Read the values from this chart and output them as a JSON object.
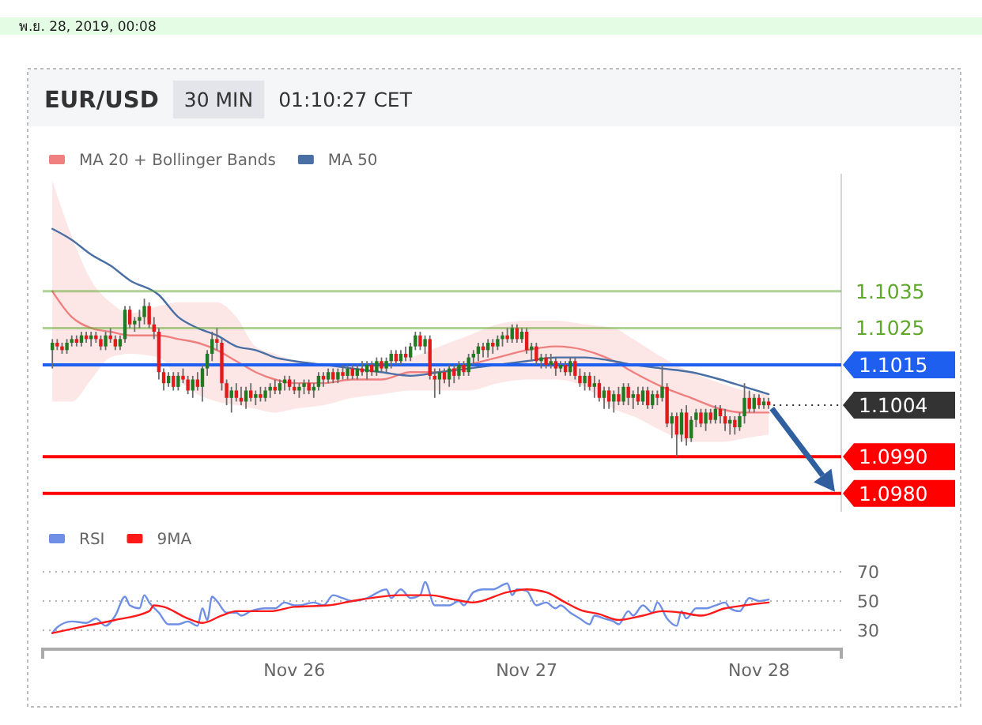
{
  "chart_data": [
    {
      "type": "candlestick",
      "title": "EUR/USD",
      "subtitle": "30 MIN",
      "annotations": [
        "พ.ย. 28, 2019, 00:08",
        "01:10:27 CET"
      ],
      "x": [
        "2019-11-24T23:00",
        "2019-11-24T23:30",
        "2019-11-25T00:00",
        "2019-11-25T00:30",
        "2019-11-25T01:00",
        "2019-11-25T01:30",
        "2019-11-25T02:00",
        "2019-11-25T02:30",
        "2019-11-25T03:00",
        "2019-11-25T03:30",
        "2019-11-25T04:00",
        "2019-11-25T04:30",
        "2019-11-25T05:00",
        "2019-11-25T05:30",
        "2019-11-25T06:00",
        "2019-11-25T06:30",
        "2019-11-25T07:00",
        "2019-11-25T07:30",
        "2019-11-25T08:00",
        "2019-11-25T08:30",
        "2019-11-25T09:00",
        "2019-11-25T09:30",
        "2019-11-25T10:00",
        "2019-11-25T10:30",
        "2019-11-25T11:00",
        "2019-11-25T11:30",
        "2019-11-25T12:00",
        "2019-11-25T12:30",
        "2019-11-25T13:00",
        "2019-11-25T13:30",
        "2019-11-25T14:00",
        "2019-11-25T14:30",
        "2019-11-25T15:00",
        "2019-11-25T15:30",
        "2019-11-25T16:00",
        "2019-11-25T16:30",
        "2019-11-25T17:00",
        "2019-11-25T17:30",
        "2019-11-25T18:00",
        "2019-11-25T18:30",
        "2019-11-25T19:00",
        "2019-11-25T19:30",
        "2019-11-25T20:00",
        "2019-11-25T20:30",
        "2019-11-25T21:00",
        "2019-11-25T21:30",
        "2019-11-25T22:00",
        "2019-11-25T22:30",
        "2019-11-25T23:00",
        "2019-11-25T23:30",
        "2019-11-26T00:00",
        "2019-11-26T00:30",
        "2019-11-26T01:00",
        "2019-11-26T01:30",
        "2019-11-26T02:00",
        "2019-11-26T02:30",
        "2019-11-26T03:00",
        "2019-11-26T03:30",
        "2019-11-26T04:00",
        "2019-11-26T04:30",
        "2019-11-26T05:00",
        "2019-11-26T05:30",
        "2019-11-26T06:00",
        "2019-11-26T06:30",
        "2019-11-26T07:00",
        "2019-11-26T07:30",
        "2019-11-26T08:00",
        "2019-11-26T08:30",
        "2019-11-26T09:00",
        "2019-11-26T09:30",
        "2019-11-26T10:00",
        "2019-11-26T10:30",
        "2019-11-26T11:00",
        "2019-11-26T11:30",
        "2019-11-26T12:00",
        "2019-11-26T12:30",
        "2019-11-26T13:00",
        "2019-11-26T13:30",
        "2019-11-26T14:00",
        "2019-11-26T14:30",
        "2019-11-26T15:00",
        "2019-11-26T15:30",
        "2019-11-26T16:00",
        "2019-11-26T16:30",
        "2019-11-26T17:00",
        "2019-11-26T17:30",
        "2019-11-26T18:00",
        "2019-11-26T18:30",
        "2019-11-26T19:00",
        "2019-11-26T19:30",
        "2019-11-26T20:00",
        "2019-11-26T20:30",
        "2019-11-26T21:00",
        "2019-11-26T21:30",
        "2019-11-26T22:00",
        "2019-11-26T22:30",
        "2019-11-26T23:00",
        "2019-11-26T23:30",
        "2019-11-27T00:00",
        "2019-11-27T00:30",
        "2019-11-27T01:00",
        "2019-11-27T01:30",
        "2019-11-27T02:00",
        "2019-11-27T02:30",
        "2019-11-27T03:00",
        "2019-11-27T03:30",
        "2019-11-27T04:00",
        "2019-11-27T04:30",
        "2019-11-27T05:00",
        "2019-11-27T05:30",
        "2019-11-27T06:00",
        "2019-11-27T06:30",
        "2019-11-27T07:00",
        "2019-11-27T07:30",
        "2019-11-27T08:00",
        "2019-11-27T08:30",
        "2019-11-27T09:00",
        "2019-11-27T09:30",
        "2019-11-27T10:00",
        "2019-11-27T10:30",
        "2019-11-27T11:00",
        "2019-11-27T11:30",
        "2019-11-27T12:00",
        "2019-11-27T12:30",
        "2019-11-27T13:00",
        "2019-11-27T13:30",
        "2019-11-27T14:00",
        "2019-11-27T14:30",
        "2019-11-27T15:00",
        "2019-11-27T15:30",
        "2019-11-27T16:00",
        "2019-11-27T16:30",
        "2019-11-27T17:00",
        "2019-11-27T17:30",
        "2019-11-27T18:00",
        "2019-11-27T18:30",
        "2019-11-27T19:00",
        "2019-11-27T19:30",
        "2019-11-27T20:00",
        "2019-11-27T20:30",
        "2019-11-27T21:00",
        "2019-11-27T21:30",
        "2019-11-27T22:00",
        "2019-11-27T22:30",
        "2019-11-27T23:00",
        "2019-11-27T23:30",
        "2019-11-28T00:00",
        "2019-11-28T00:30",
        "2019-11-28T01:00"
      ],
      "ohlc": [
        [
          1.1019,
          1.1022,
          1.1014,
          1.1021
        ],
        [
          1.1021,
          1.1022,
          1.1019,
          1.102
        ],
        [
          1.102,
          1.1021,
          1.1018,
          1.1019
        ],
        [
          1.1019,
          1.1022,
          1.1018,
          1.1021
        ],
        [
          1.1021,
          1.1023,
          1.102,
          1.1022
        ],
        [
          1.1022,
          1.1023,
          1.102,
          1.1021
        ],
        [
          1.1021,
          1.1024,
          1.102,
          1.1023
        ],
        [
          1.1023,
          1.1024,
          1.1021,
          1.1022
        ],
        [
          1.1022,
          1.1024,
          1.102,
          1.1023
        ],
        [
          1.1023,
          1.1024,
          1.1021,
          1.1022
        ],
        [
          1.1022,
          1.1023,
          1.1019,
          1.102
        ],
        [
          1.102,
          1.1024,
          1.1019,
          1.1023
        ],
        [
          1.1023,
          1.1025,
          1.1021,
          1.1022
        ],
        [
          1.1022,
          1.1023,
          1.1019,
          1.102
        ],
        [
          1.102,
          1.1023,
          1.1019,
          1.1022
        ],
        [
          1.1022,
          1.1031,
          1.1021,
          1.103
        ],
        [
          1.103,
          1.1031,
          1.1025,
          1.1026
        ],
        [
          1.1026,
          1.1028,
          1.1024,
          1.1027
        ],
        [
          1.1027,
          1.103,
          1.1025,
          1.1028
        ],
        [
          1.1028,
          1.1033,
          1.1026,
          1.1031
        ],
        [
          1.1031,
          1.1032,
          1.1025,
          1.1026
        ],
        [
          1.1026,
          1.1028,
          1.1022,
          1.1024
        ],
        [
          1.1024,
          1.1025,
          1.1011,
          1.1013
        ],
        [
          1.1013,
          1.1014,
          1.1008,
          1.101
        ],
        [
          1.101,
          1.1013,
          1.1009,
          1.1012
        ],
        [
          1.1012,
          1.1013,
          1.1008,
          1.1009
        ],
        [
          1.1009,
          1.1013,
          1.1008,
          1.1012
        ],
        [
          1.1012,
          1.1014,
          1.101,
          1.1011
        ],
        [
          1.1011,
          1.1012,
          1.1007,
          1.1008
        ],
        [
          1.1008,
          1.1012,
          1.1006,
          1.1011
        ],
        [
          1.1011,
          1.1013,
          1.1008,
          1.1009
        ],
        [
          1.1009,
          1.1015,
          1.1005,
          1.1014
        ],
        [
          1.1014,
          1.1019,
          1.1012,
          1.1018
        ],
        [
          1.1018,
          1.1024,
          1.1016,
          1.1022
        ],
        [
          1.1022,
          1.1025,
          1.1019,
          1.1021
        ],
        [
          1.1021,
          1.1022,
          1.1008,
          1.101
        ],
        [
          1.101,
          1.1011,
          1.1004,
          1.1006
        ],
        [
          1.1006,
          1.1009,
          1.1002,
          1.1008
        ],
        [
          1.1008,
          1.101,
          1.1005,
          1.1006
        ],
        [
          1.1006,
          1.1009,
          1.1004,
          1.1005
        ],
        [
          1.1005,
          1.1009,
          1.1003,
          1.1008
        ],
        [
          1.1008,
          1.101,
          1.1005,
          1.1006
        ],
        [
          1.1006,
          1.1008,
          1.1004,
          1.1007
        ],
        [
          1.1007,
          1.1009,
          1.1005,
          1.1006
        ],
        [
          1.1006,
          1.1009,
          1.1005,
          1.1008
        ],
        [
          1.1008,
          1.101,
          1.1006,
          1.1009
        ],
        [
          1.1009,
          1.1011,
          1.1007,
          1.1008
        ],
        [
          1.1008,
          1.1011,
          1.1007,
          1.101
        ],
        [
          1.101,
          1.1012,
          1.1008,
          1.1011
        ],
        [
          1.1011,
          1.1012,
          1.1008,
          1.1009
        ],
        [
          1.1009,
          1.1011,
          1.1007,
          1.1008
        ],
        [
          1.1008,
          1.101,
          1.1006,
          1.1009
        ],
        [
          1.1009,
          1.1011,
          1.1007,
          1.101
        ],
        [
          1.101,
          1.1011,
          1.1007,
          1.1008
        ],
        [
          1.1008,
          1.101,
          1.1006,
          1.1009
        ],
        [
          1.1009,
          1.1013,
          1.1008,
          1.1012
        ],
        [
          1.1012,
          1.1013,
          1.1009,
          1.1011
        ],
        [
          1.1011,
          1.1014,
          1.101,
          1.1013
        ],
        [
          1.1013,
          1.1014,
          1.101,
          1.1011
        ],
        [
          1.1011,
          1.1014,
          1.101,
          1.1013
        ],
        [
          1.1013,
          1.1015,
          1.1011,
          1.1012
        ],
        [
          1.1012,
          1.1015,
          1.1011,
          1.1014
        ],
        [
          1.1014,
          1.1015,
          1.1011,
          1.1012
        ],
        [
          1.1012,
          1.1015,
          1.1011,
          1.1014
        ],
        [
          1.1014,
          1.1016,
          1.1012,
          1.1013
        ],
        [
          1.1013,
          1.1016,
          1.1011,
          1.1015
        ],
        [
          1.1015,
          1.1016,
          1.1012,
          1.1013
        ],
        [
          1.1013,
          1.1017,
          1.1012,
          1.1016
        ],
        [
          1.1016,
          1.1017,
          1.1013,
          1.1014
        ],
        [
          1.1014,
          1.1017,
          1.1013,
          1.1016
        ],
        [
          1.1016,
          1.1019,
          1.1014,
          1.1018
        ],
        [
          1.1018,
          1.1019,
          1.1015,
          1.1016
        ],
        [
          1.1016,
          1.1019,
          1.1015,
          1.1018
        ],
        [
          1.1018,
          1.102,
          1.1016,
          1.1017
        ],
        [
          1.1017,
          1.1021,
          1.1016,
          1.102
        ],
        [
          1.102,
          1.1024,
          1.1019,
          1.1023
        ],
        [
          1.1023,
          1.1024,
          1.1019,
          1.102
        ],
        [
          1.102,
          1.1023,
          1.1018,
          1.1022
        ],
        [
          1.1022,
          1.1023,
          1.1011,
          1.1012
        ],
        [
          1.1012,
          1.1014,
          1.1006,
          1.1011
        ],
        [
          1.1011,
          1.1014,
          1.1007,
          1.1013
        ],
        [
          1.1013,
          1.1014,
          1.101,
          1.1011
        ],
        [
          1.1011,
          1.1015,
          1.1009,
          1.1014
        ],
        [
          1.1014,
          1.1015,
          1.101,
          1.1012
        ],
        [
          1.1012,
          1.1016,
          1.1011,
          1.1015
        ],
        [
          1.1015,
          1.1016,
          1.1012,
          1.1013
        ],
        [
          1.1013,
          1.1018,
          1.1012,
          1.1017
        ],
        [
          1.1017,
          1.1019,
          1.1015,
          1.1018
        ],
        [
          1.1018,
          1.1021,
          1.1016,
          1.102
        ],
        [
          1.102,
          1.1021,
          1.1017,
          1.1019
        ],
        [
          1.1019,
          1.1022,
          1.1017,
          1.1021
        ],
        [
          1.1021,
          1.1022,
          1.1018,
          1.102
        ],
        [
          1.102,
          1.1023,
          1.1019,
          1.1022
        ],
        [
          1.1022,
          1.1024,
          1.102,
          1.1023
        ],
        [
          1.1023,
          1.1025,
          1.1021,
          1.1022
        ],
        [
          1.1022,
          1.1026,
          1.1021,
          1.1025
        ],
        [
          1.1025,
          1.1026,
          1.1021,
          1.1022
        ],
        [
          1.1022,
          1.1025,
          1.1021,
          1.1024
        ],
        [
          1.1024,
          1.1025,
          1.1018,
          1.1019
        ],
        [
          1.1019,
          1.1021,
          1.1016,
          1.102
        ],
        [
          1.102,
          1.1021,
          1.1015,
          1.1016
        ],
        [
          1.1016,
          1.1018,
          1.1014,
          1.1017
        ],
        [
          1.1017,
          1.1018,
          1.1014,
          1.1015
        ],
        [
          1.1015,
          1.1018,
          1.1014,
          1.1016
        ],
        [
          1.1016,
          1.1017,
          1.1012,
          1.1014
        ],
        [
          1.1014,
          1.1016,
          1.1013,
          1.1015
        ],
        [
          1.1015,
          1.1016,
          1.1012,
          1.1013
        ],
        [
          1.1013,
          1.1017,
          1.1012,
          1.1016
        ],
        [
          1.1016,
          1.1017,
          1.1011,
          1.1012
        ],
        [
          1.1012,
          1.1014,
          1.1009,
          1.101
        ],
        [
          1.101,
          1.1013,
          1.1008,
          1.1012
        ],
        [
          1.1012,
          1.1013,
          1.1008,
          1.1009
        ],
        [
          1.1009,
          1.1012,
          1.1006,
          1.101
        ],
        [
          1.101,
          1.1011,
          1.1005,
          1.1006
        ],
        [
          1.1006,
          1.1009,
          1.1003,
          1.1008
        ],
        [
          1.1008,
          1.1009,
          1.1003,
          1.1005
        ],
        [
          1.1005,
          1.1008,
          1.1002,
          1.1007
        ],
        [
          1.1007,
          1.1009,
          1.1004,
          1.1005
        ],
        [
          1.1005,
          1.101,
          1.1004,
          1.1009
        ],
        [
          1.1009,
          1.101,
          1.1004,
          1.1006
        ],
        [
          1.1006,
          1.1008,
          1.1003,
          1.1007
        ],
        [
          1.1007,
          1.1009,
          1.1004,
          1.1005
        ],
        [
          1.1005,
          1.1009,
          1.1004,
          1.1008
        ],
        [
          1.1008,
          1.1009,
          1.1003,
          1.1004
        ],
        [
          1.1004,
          1.1008,
          1.1003,
          1.1007
        ],
        [
          1.1007,
          1.1008,
          1.1004,
          1.1006
        ],
        [
          1.1006,
          1.1015,
          1.1005,
          1.1009
        ],
        [
          1.1009,
          1.101,
          1.0998,
          1.0999
        ],
        [
          1.0999,
          1.1002,
          1.0995,
          1.1001
        ],
        [
          1.1001,
          1.1002,
          1.099,
          1.0996
        ],
        [
          1.0996,
          1.1003,
          1.0994,
          1.1002
        ],
        [
          1.1002,
          1.1004,
          1.0993,
          1.0995
        ],
        [
          1.0995,
          1.1001,
          1.0994,
          1.1
        ],
        [
          1.1,
          1.1003,
          1.0998,
          1.1002
        ],
        [
          1.1002,
          1.1003,
          1.0998,
          1.0999
        ],
        [
          1.0999,
          1.1003,
          1.0997,
          1.1002
        ],
        [
          1.1002,
          1.1003,
          1.0999,
          1.1
        ],
        [
          1.1,
          1.1004,
          1.0999,
          1.1003
        ],
        [
          1.1003,
          1.1004,
          1.0999,
          1.1001
        ],
        [
          1.1001,
          1.1003,
          1.0997,
          1.0999
        ],
        [
          1.0999,
          1.1001,
          1.0996,
          1.1
        ],
        [
          1.1,
          1.1001,
          1.0996,
          1.0998
        ],
        [
          1.0998,
          1.1002,
          1.0997,
          1.1001
        ],
        [
          1.1001,
          1.101,
          1.0999,
          1.1006
        ],
        [
          1.1006,
          1.1008,
          1.1002,
          1.1003
        ],
        [
          1.1003,
          1.1007,
          1.1002,
          1.1006
        ],
        [
          1.1006,
          1.1007,
          1.1003,
          1.1004
        ],
        [
          1.1004,
          1.1006,
          1.1003,
          1.1005
        ],
        [
          1.1005,
          1.1006,
          1.1003,
          1.1004
        ]
      ],
      "colors": [
        "#217a21",
        "#e41a1a",
        "#e41a1a",
        "#217a21",
        "#217a21",
        "#e41a1a",
        "#217a21",
        "#e41a1a",
        "#217a21",
        "#e41a1a",
        "#e41a1a",
        "#217a21",
        "#e41a1a",
        "#e41a1a",
        "#217a21",
        "#217a21",
        "#e41a1a",
        "#217a21",
        "#217a21",
        "#217a21",
        "#e41a1a",
        "#e41a1a",
        "#e41a1a",
        "#e41a1a",
        "#217a21",
        "#e41a1a",
        "#217a21",
        "#e41a1a",
        "#e41a1a",
        "#217a21",
        "#e41a1a",
        "#217a21",
        "#217a21",
        "#217a21",
        "#e41a1a",
        "#e41a1a",
        "#e41a1a",
        "#217a21",
        "#e41a1a",
        "#e41a1a",
        "#217a21",
        "#e41a1a",
        "#217a21",
        "#e41a1a",
        "#217a21",
        "#217a21",
        "#e41a1a",
        "#217a21",
        "#217a21",
        "#e41a1a",
        "#e41a1a",
        "#217a21",
        "#217a21",
        "#e41a1a",
        "#217a21",
        "#217a21",
        "#e41a1a",
        "#217a21",
        "#e41a1a",
        "#217a21",
        "#e41a1a",
        "#217a21",
        "#e41a1a",
        "#217a21",
        "#e41a1a",
        "#217a21",
        "#e41a1a",
        "#217a21",
        "#e41a1a",
        "#217a21",
        "#217a21",
        "#e41a1a",
        "#217a21",
        "#e41a1a",
        "#217a21",
        "#217a21",
        "#e41a1a",
        "#217a21",
        "#e41a1a",
        "#e41a1a",
        "#217a21",
        "#e41a1a",
        "#217a21",
        "#e41a1a",
        "#217a21",
        "#e41a1a",
        "#217a21",
        "#217a21",
        "#217a21",
        "#e41a1a",
        "#217a21",
        "#e41a1a",
        "#217a21",
        "#217a21",
        "#e41a1a",
        "#217a21",
        "#e41a1a",
        "#217a21",
        "#e41a1a",
        "#217a21",
        "#e41a1a",
        "#217a21",
        "#e41a1a",
        "#217a21",
        "#e41a1a",
        "#217a21",
        "#e41a1a",
        "#217a21",
        "#e41a1a",
        "#e41a1a",
        "#217a21",
        "#e41a1a",
        "#217a21",
        "#e41a1a",
        "#217a21",
        "#e41a1a",
        "#217a21",
        "#e41a1a",
        "#217a21",
        "#e41a1a",
        "#217a21",
        "#e41a1a",
        "#217a21",
        "#e41a1a",
        "#217a21",
        "#e41a1a",
        "#217a21",
        "#e41a1a",
        "#217a21",
        "#e41a1a",
        "#217a21",
        "#e41a1a",
        "#217a21",
        "#217a21",
        "#e41a1a",
        "#217a21",
        "#e41a1a",
        "#217a21",
        "#e41a1a",
        "#e41a1a",
        "#217a21",
        "#e41a1a",
        "#217a21",
        "#217a21",
        "#e41a1a",
        "#217a21",
        "#e41a1a",
        "#217a21",
        "#e41a1a"
      ],
      "series": [
        {
          "name": "MA 20 + Bollinger Bands",
          "type": "line",
          "color": "#f08080",
          "x": [
            "2019-11-24T23:00",
            "2019-11-25T01:00",
            "2019-11-25T03:00",
            "2019-11-25T05:00",
            "2019-11-25T07:00",
            "2019-11-25T10:00",
            "2019-11-25T12:00",
            "2019-11-25T14:00",
            "2019-11-25T16:00",
            "2019-11-25T18:00",
            "2019-11-25T20:00",
            "2019-11-25T22:00",
            "2019-11-26T00:00",
            "2019-11-26T03:00",
            "2019-11-26T06:00",
            "2019-11-26T09:00",
            "2019-11-26T12:00",
            "2019-11-26T15:00",
            "2019-11-26T18:00",
            "2019-11-26T21:00",
            "2019-11-27T00:00",
            "2019-11-27T03:00",
            "2019-11-27T06:00",
            "2019-11-27T09:00",
            "2019-11-27T11:00",
            "2019-11-27T14:00",
            "2019-11-27T17:00",
            "2019-11-27T20:00",
            "2019-11-27T22:30",
            "2019-11-28T01:00"
          ],
          "values": [
            1.1035,
            1.1028,
            1.1025,
            1.1024,
            1.1023,
            1.1023,
            1.1022,
            1.1021,
            1.1019,
            1.1016,
            1.1013,
            1.1011,
            1.101,
            1.101,
            1.1011,
            1.1011,
            1.1013,
            1.1013,
            1.1015,
            1.1017,
            1.1019,
            1.102,
            1.1019,
            1.1016,
            1.1013,
            1.1009,
            1.1006,
            1.1003,
            1.1002,
            1.1002
          ],
          "upper": [
            1.1065,
            1.105,
            1.1038,
            1.1032,
            1.1029,
            1.1031,
            1.1032,
            1.1032,
            1.1032,
            1.1028,
            1.102,
            1.1018,
            1.1016,
            1.1015,
            1.1015,
            1.1016,
            1.1017,
            1.102,
            1.1023,
            1.1026,
            1.1027,
            1.1027,
            1.1026,
            1.1025,
            1.1022,
            1.1017,
            1.1013,
            1.101,
            1.1008,
            1.1007
          ],
          "lower": [
            1.1005,
            1.1005,
            1.1011,
            1.1017,
            1.1018,
            1.1017,
            1.1011,
            1.1007,
            1.1005,
            1.1004,
            1.1003,
            1.1002,
            1.1003,
            1.1004,
            1.1006,
            1.1007,
            1.1008,
            1.1008,
            1.1008,
            1.101,
            1.1011,
            1.1011,
            1.1009,
            1.1003,
            1.1001,
            1.0997,
            1.0994,
            1.0994,
            1.0995,
            1.0996
          ]
        },
        {
          "name": "MA 50",
          "type": "line",
          "color": "#4a6fa5",
          "x": [
            "2019-11-24T23:00",
            "2019-11-25T01:00",
            "2019-11-25T03:00",
            "2019-11-25T05:00",
            "2019-11-25T07:00",
            "2019-11-25T10:00",
            "2019-11-25T12:00",
            "2019-11-25T14:00",
            "2019-11-25T16:00",
            "2019-11-25T18:00",
            "2019-11-25T20:00",
            "2019-11-25T22:00",
            "2019-11-26T00:00",
            "2019-11-26T03:00",
            "2019-11-26T06:00",
            "2019-11-26T09:00",
            "2019-11-26T12:00",
            "2019-11-26T15:00",
            "2019-11-26T18:00",
            "2019-11-26T21:00",
            "2019-11-27T00:00",
            "2019-11-27T03:00",
            "2019-11-27T06:00",
            "2019-11-27T09:00",
            "2019-11-27T11:00",
            "2019-11-27T14:00",
            "2019-11-27T17:00",
            "2019-11-27T20:00",
            "2019-11-27T22:30",
            "2019-11-28T01:00"
          ],
          "values": [
            1.1052,
            1.1049,
            1.1045,
            1.1042,
            1.1038,
            1.1034,
            1.1028,
            1.1025,
            1.1023,
            1.102,
            1.1019,
            1.1017,
            1.1016,
            1.1015,
            1.1014,
            1.1013,
            1.1012,
            1.1013,
            1.1014,
            1.1015,
            1.1016,
            1.1017,
            1.1017,
            1.1016,
            1.1015,
            1.1014,
            1.1013,
            1.1011,
            1.1009,
            1.1007
          ]
        }
      ],
      "xlim": [
        "2019-11-24T22:00",
        "2019-11-28T08:30"
      ],
      "ylim": [
        1.0975,
        1.1067
      ],
      "yticks": [
        {
          "value": 1.098,
          "label": "1.0980"
        },
        {
          "value": 1.099,
          "label": "1.0990"
        },
        1.1004,
        1.1015,
        1.1025,
        1.1035
      ],
      "ref_lines": [
        {
          "axis": "y",
          "value": 1.1035,
          "color": "#5ea82a"
        },
        {
          "axis": "y",
          "value": 1.1025,
          "color": "#5ea82a"
        },
        {
          "axis": "y",
          "value": 1.1015,
          "color": "#1e5ff0"
        },
        {
          "axis": "y",
          "value": 1.1004,
          "color": "#333333",
          "line_style": "dotted"
        },
        {
          "axis": "y",
          "value": 1.099,
          "color": "#ff0000"
        },
        {
          "axis": "y",
          "value": 1.098,
          "color": "#ff0000"
        }
      ],
      "legend": "top left",
      "tick_labels": "y"
    },
    {
      "type": "line",
      "series": [
        {
          "name": "RSI",
          "color": "#6f8fe6",
          "x": [
            "2019-11-24T23:00",
            "2019-11-24T23:30",
            "2019-11-25T01:00",
            "2019-11-25T02:30",
            "2019-11-25T03:30",
            "2019-11-25T04:30",
            "2019-11-25T05:30",
            "2019-11-25T06:30",
            "2019-11-25T07:00",
            "2019-11-25T08:00",
            "2019-11-25T08:30",
            "2019-11-25T09:00",
            "2019-11-25T10:00",
            "2019-11-25T11:00",
            "2019-11-25T12:00",
            "2019-11-25T13:00",
            "2019-11-25T14:00",
            "2019-11-25T14:30",
            "2019-11-25T15:00",
            "2019-11-25T15:30",
            "2019-11-25T16:00",
            "2019-11-25T17:00",
            "2019-11-25T18:00",
            "2019-11-25T18:30",
            "2019-11-25T19:30",
            "2019-11-25T21:00",
            "2019-11-25T22:00",
            "2019-11-25T23:00",
            "2019-11-26T00:00",
            "2019-11-26T00:30",
            "2019-11-26T02:00",
            "2019-11-26T03:00",
            "2019-11-26T04:00",
            "2019-11-26T05:00",
            "2019-11-26T06:00",
            "2019-11-26T07:30",
            "2019-11-26T09:30",
            "2019-11-26T10:00",
            "2019-11-26T11:00",
            "2019-11-26T12:00",
            "2019-11-26T13:00",
            "2019-11-26T13:30",
            "2019-11-26T14:30",
            "2019-11-26T16:00",
            "2019-11-26T17:00",
            "2019-11-26T17:30",
            "2019-11-26T18:30",
            "2019-11-26T19:30",
            "2019-11-26T20:30",
            "2019-11-26T22:00",
            "2019-11-26T22:30",
            "2019-11-26T23:00",
            "2019-11-27T00:00",
            "2019-11-27T01:00",
            "2019-11-27T02:00",
            "2019-11-27T03:00",
            "2019-11-27T03:30",
            "2019-11-27T04:30",
            "2019-11-27T05:30",
            "2019-11-27T06:30",
            "2019-11-27T07:00",
            "2019-11-27T08:00",
            "2019-11-27T09:00",
            "2019-11-27T09:30",
            "2019-11-27T10:30",
            "2019-11-27T11:00",
            "2019-11-27T12:00",
            "2019-11-27T13:00",
            "2019-11-27T13:30",
            "2019-11-27T14:30",
            "2019-11-27T15:30",
            "2019-11-27T16:00",
            "2019-11-27T16:30",
            "2019-11-27T17:30",
            "2019-11-27T18:30",
            "2019-11-27T19:30",
            "2019-11-27T20:30",
            "2019-11-27T21:00",
            "2019-11-27T22:00",
            "2019-11-27T23:00",
            "2019-11-28T00:00",
            "2019-11-28T01:00"
          ],
          "values": [
            28,
            32,
            36,
            35,
            38,
            33,
            40,
            53,
            47,
            45,
            54,
            49,
            42,
            34,
            34,
            36,
            33,
            45,
            37,
            53,
            50,
            42,
            42,
            40,
            43,
            45,
            45,
            49,
            47,
            47,
            49,
            47,
            54,
            52,
            50,
            52,
            58,
            52,
            58,
            52,
            54,
            63,
            47,
            47,
            50,
            47,
            56,
            58,
            58,
            62,
            54,
            58,
            57,
            47,
            49,
            45,
            47,
            42,
            38,
            34,
            40,
            38,
            36,
            34,
            43,
            40,
            47,
            42,
            49,
            38,
            33,
            43,
            38,
            45,
            45,
            47,
            49,
            45,
            43,
            52,
            50,
            51
          ]
        },
        {
          "name": "9MA",
          "color": "#ff1a1a",
          "x": [
            "2019-11-24T23:00",
            "2019-11-25T02:30",
            "2019-11-25T05:30",
            "2019-11-25T09:00",
            "2019-11-25T09:30",
            "2019-11-25T10:30",
            "2019-11-25T13:00",
            "2019-11-25T14:30",
            "2019-11-25T16:30",
            "2019-11-25T18:00",
            "2019-11-25T21:30",
            "2019-11-26T00:00",
            "2019-11-26T03:30",
            "2019-11-26T06:00",
            "2019-11-26T11:00",
            "2019-11-26T14:00",
            "2019-11-26T16:30",
            "2019-11-26T18:30",
            "2019-11-26T22:00",
            "2019-11-27T00:00",
            "2019-11-27T02:00",
            "2019-11-27T04:00",
            "2019-11-27T05:30",
            "2019-11-27T07:30",
            "2019-11-27T09:30",
            "2019-11-27T12:00",
            "2019-11-27T14:00",
            "2019-11-27T16:00",
            "2019-11-27T18:00",
            "2019-11-27T20:30",
            "2019-11-27T22:30",
            "2019-11-28T01:00"
          ],
          "values": [
            28,
            33,
            37,
            43,
            47,
            46,
            38,
            35,
            40,
            43,
            43,
            46,
            47,
            50,
            54,
            54,
            51,
            49,
            56,
            58,
            56,
            49,
            44,
            41,
            37,
            40,
            43,
            42,
            40,
            45,
            47,
            49
          ]
        }
      ],
      "xlim": [
        "2019-11-24T22:00",
        "2019-11-28T08:30"
      ],
      "xticks": [
        {
          "value": "2019-11-26",
          "label": "Nov 26"
        },
        {
          "value": "2019-11-27",
          "label": "Nov 27"
        },
        {
          "value": "2019-11-28",
          "label": "Nov 28"
        }
      ],
      "ylim": [
        17,
        70
      ],
      "yticks": [
        30,
        50,
        70
      ],
      "grid": "y",
      "legend": "top left"
    }
  ]
}
